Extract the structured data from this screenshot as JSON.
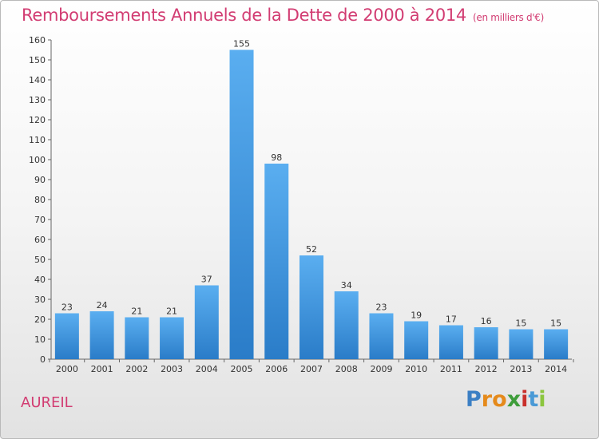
{
  "header": {
    "title": "Remboursements Annuels de la Dette de 2000 à 2014",
    "subtitle": "(en milliers d'€)"
  },
  "footer": {
    "city": "AUREIL",
    "logo": "Proxiti"
  },
  "chart_data": {
    "type": "bar",
    "title": "Remboursements Annuels de la Dette de 2000 à 2014",
    "subtitle": "(en milliers d'€)",
    "categories": [
      "2000",
      "2001",
      "2002",
      "2003",
      "2004",
      "2005",
      "2006",
      "2007",
      "2008",
      "2009",
      "2010",
      "2011",
      "2012",
      "2013",
      "2014"
    ],
    "values": [
      23,
      24,
      21,
      21,
      37,
      155,
      98,
      52,
      34,
      23,
      19,
      17,
      16,
      15,
      15
    ],
    "ylim": [
      0,
      160
    ],
    "yticks": [
      0,
      10,
      20,
      30,
      40,
      50,
      60,
      70,
      80,
      90,
      100,
      110,
      120,
      130,
      140,
      150,
      160
    ],
    "grid": false,
    "colors": {
      "bar_light": "#5aaef0",
      "bar_dark": "#2a7cc8",
      "title": "#d23c72"
    }
  }
}
